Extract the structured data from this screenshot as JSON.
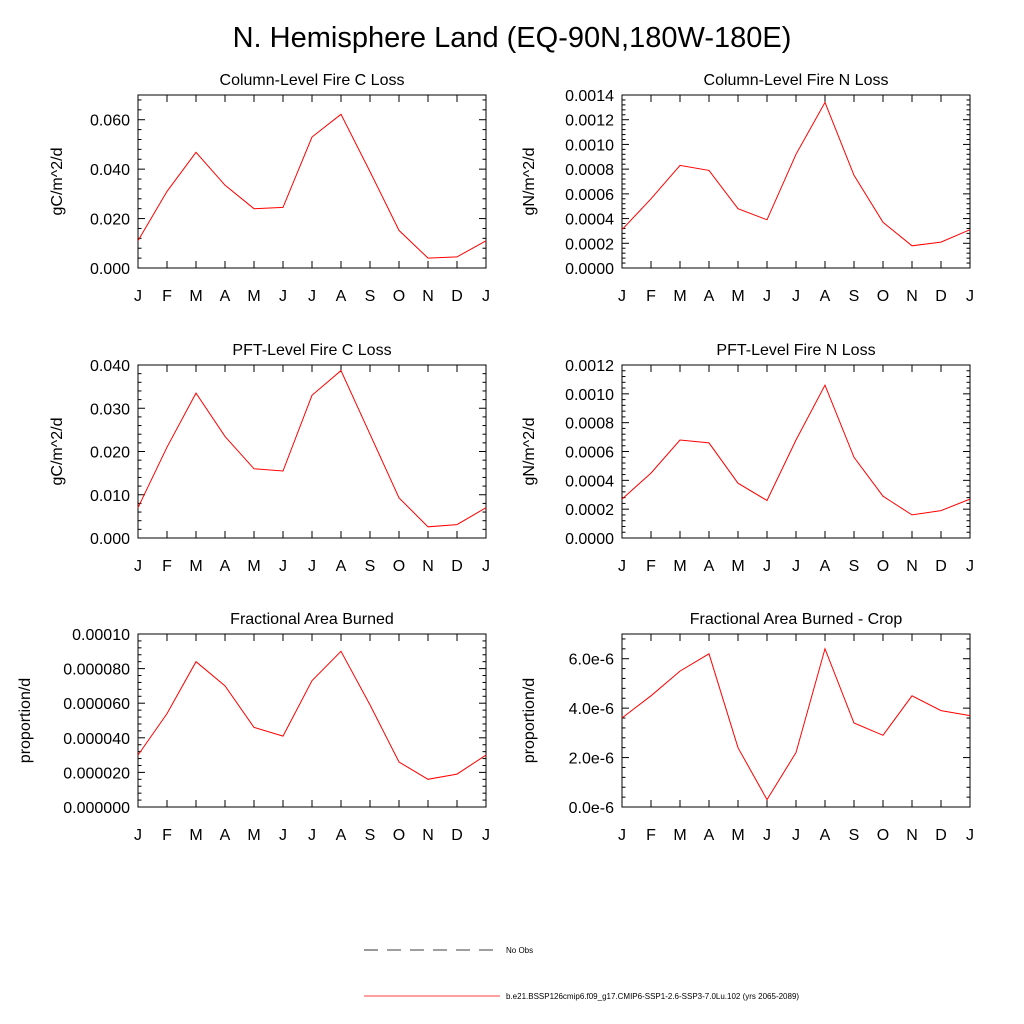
{
  "title": "N. Hemisphere Land (EQ-90N,180W-180E)",
  "months": [
    "J",
    "F",
    "M",
    "A",
    "M",
    "J",
    "J",
    "A",
    "S",
    "O",
    "N",
    "D",
    "J"
  ],
  "line_color": "#ff0000",
  "chart_data": [
    {
      "type": "line",
      "title": "Column-Level Fire C Loss",
      "ylabel": "gC/m^2/d",
      "ylim": [
        0,
        0.07
      ],
      "yticks": [
        0,
        0.02,
        0.04,
        0.06
      ],
      "ytick_labels": [
        "0.000",
        "0.020",
        "0.040",
        "0.060"
      ],
      "categories": [
        "J",
        "F",
        "M",
        "A",
        "M",
        "J",
        "J",
        "A",
        "S",
        "O",
        "N",
        "D",
        "J"
      ],
      "series": [
        {
          "values": [
            0.011,
            0.031,
            0.0468,
            0.0335,
            0.024,
            0.0245,
            0.053,
            0.0622,
            0.039,
            0.0152,
            0.004,
            0.0045,
            0.011
          ]
        }
      ]
    },
    {
      "type": "line",
      "title": "Column-Level Fire N Loss",
      "ylabel": "gN/m^2/d",
      "ylim": [
        0,
        0.0014
      ],
      "yticks": [
        0,
        0.0002,
        0.0004,
        0.0006,
        0.0008,
        0.001,
        0.0012,
        0.0014
      ],
      "ytick_labels": [
        "0.0000",
        "0.0002",
        "0.0004",
        "0.0006",
        "0.0008",
        "0.0010",
        "0.0012",
        "0.0014"
      ],
      "categories": [
        "J",
        "F",
        "M",
        "A",
        "M",
        "J",
        "J",
        "A",
        "S",
        "O",
        "N",
        "D",
        "J"
      ],
      "series": [
        {
          "values": [
            0.00031,
            0.00056,
            0.00083,
            0.00079,
            0.00048,
            0.00039,
            0.00092,
            0.00134,
            0.00075,
            0.00037,
            0.00018,
            0.00021,
            0.00031
          ]
        }
      ]
    },
    {
      "type": "line",
      "title": "PFT-Level Fire C Loss",
      "ylabel": "gC/m^2/d",
      "ylim": [
        0,
        0.04
      ],
      "yticks": [
        0,
        0.01,
        0.02,
        0.03,
        0.04
      ],
      "ytick_labels": [
        "0.000",
        "0.010",
        "0.020",
        "0.030",
        "0.040"
      ],
      "categories": [
        "J",
        "F",
        "M",
        "A",
        "M",
        "J",
        "J",
        "A",
        "S",
        "O",
        "N",
        "D",
        "J"
      ],
      "series": [
        {
          "values": [
            0.007,
            0.021,
            0.0335,
            0.0235,
            0.016,
            0.0155,
            0.033,
            0.0387,
            0.024,
            0.0093,
            0.0026,
            0.0031,
            0.007
          ]
        }
      ]
    },
    {
      "type": "line",
      "title": "PFT-Level Fire N Loss",
      "ylabel": "gN/m^2/d",
      "ylim": [
        0,
        0.0012
      ],
      "yticks": [
        0,
        0.0002,
        0.0004,
        0.0006,
        0.0008,
        0.001,
        0.0012
      ],
      "ytick_labels": [
        "0.0000",
        "0.0002",
        "0.0004",
        "0.0006",
        "0.0008",
        "0.0010",
        "0.0012"
      ],
      "categories": [
        "J",
        "F",
        "M",
        "A",
        "M",
        "J",
        "J",
        "A",
        "S",
        "O",
        "N",
        "D",
        "J"
      ],
      "series": [
        {
          "values": [
            0.00027,
            0.00045,
            0.00068,
            0.00066,
            0.00038,
            0.00026,
            0.00068,
            0.00106,
            0.00056,
            0.00029,
            0.00016,
            0.00019,
            0.00027
          ]
        }
      ]
    },
    {
      "type": "line",
      "title": "Fractional Area Burned",
      "ylabel": "proportion/d",
      "ylim": [
        0,
        0.0001
      ],
      "yticks": [
        0,
        2e-05,
        4e-05,
        6e-05,
        8e-05,
        0.0001
      ],
      "ytick_labels": [
        "0.000000",
        "0.000020",
        "0.000040",
        "0.000060",
        "0.000080",
        "0.00010"
      ],
      "categories": [
        "J",
        "F",
        "M",
        "A",
        "M",
        "J",
        "J",
        "A",
        "S",
        "O",
        "N",
        "D",
        "J"
      ],
      "series": [
        {
          "values": [
            3e-05,
            5.4e-05,
            8.4e-05,
            7e-05,
            4.6e-05,
            4.1e-05,
            7.3e-05,
            9e-05,
            5.9e-05,
            2.6e-05,
            1.6e-05,
            1.9e-05,
            3e-05
          ]
        }
      ]
    },
    {
      "type": "line",
      "title": "Fractional Area Burned - Crop",
      "ylabel": "proportion/d",
      "ylim": [
        0,
        7e-06
      ],
      "yticks": [
        0,
        2e-06,
        4e-06,
        6e-06
      ],
      "ytick_labels": [
        "0.0e-6",
        "2.0e-6",
        "4.0e-6",
        "6.0e-6"
      ],
      "categories": [
        "J",
        "F",
        "M",
        "A",
        "M",
        "J",
        "J",
        "A",
        "S",
        "O",
        "N",
        "D",
        "J"
      ],
      "series": [
        {
          "values": [
            3.6e-06,
            4.5e-06,
            5.5e-06,
            6.2e-06,
            2.4e-06,
            3e-07,
            2.2e-06,
            6.4e-06,
            3.4e-06,
            2.9e-06,
            4.5e-06,
            3.9e-06,
            3.7e-06
          ]
        }
      ]
    }
  ],
  "legend": {
    "entries": [
      {
        "label": "No Obs",
        "style": "dashed",
        "color": "#000000"
      },
      {
        "label": "b.e21.BSSP126cmip6.f09_g17.CMIP6-SSP1-2.6-SSP3-7.0Lu.102 (yrs 2065-2089)",
        "style": "solid",
        "color": "#ff0000"
      }
    ]
  }
}
